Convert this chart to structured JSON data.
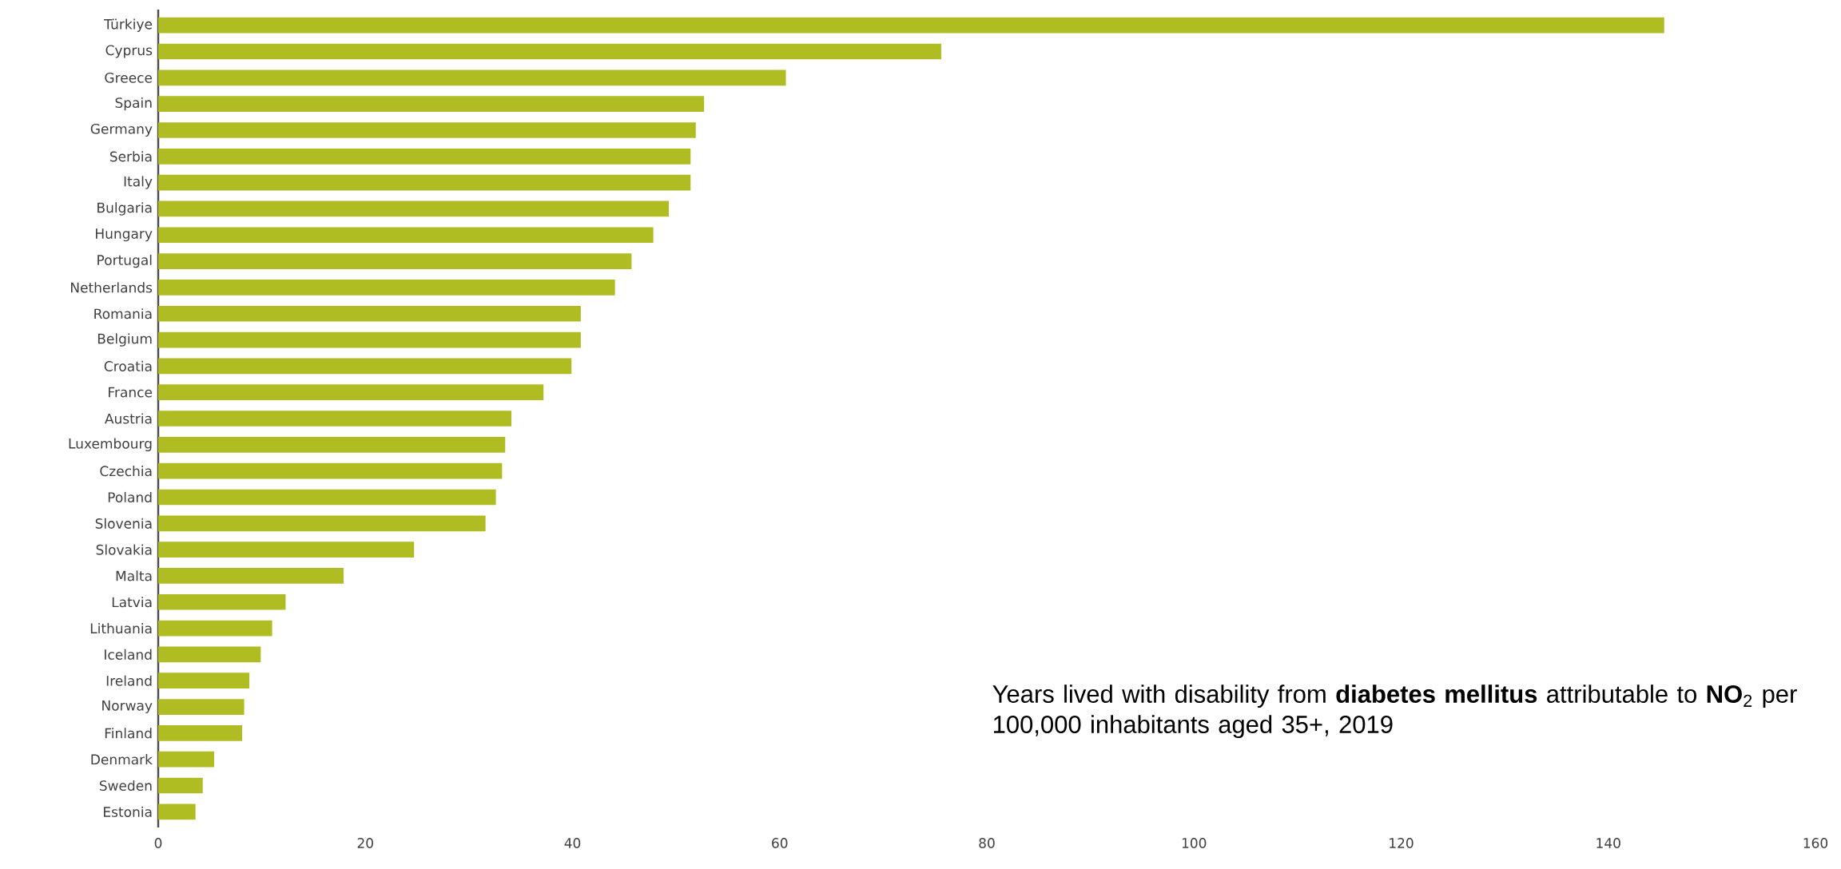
{
  "chart_data": {
    "type": "bar",
    "orientation": "horizontal",
    "categories": [
      "Türkiye",
      "Cyprus",
      "Greece",
      "Spain",
      "Germany",
      "Serbia",
      "Italy",
      "Bulgaria",
      "Hungary",
      "Portugal",
      "Netherlands",
      "Romania",
      "Belgium",
      "Croatia",
      "France",
      "Austria",
      "Luxembourg",
      "Czechia",
      "Poland",
      "Slovenia",
      "Slovakia",
      "Malta",
      "Latvia",
      "Lithuania",
      "Iceland",
      "Ireland",
      "Norway",
      "Finland",
      "Denmark",
      "Sweden",
      "Estonia"
    ],
    "values": [
      145.4,
      75.6,
      60.6,
      52.7,
      51.9,
      51.4,
      51.4,
      49.3,
      47.8,
      45.7,
      44.1,
      40.8,
      40.8,
      39.9,
      37.2,
      34.1,
      33.5,
      33.2,
      32.6,
      31.6,
      24.7,
      17.9,
      12.3,
      11.0,
      9.9,
      8.8,
      8.3,
      8.1,
      5.4,
      4.3,
      3.6
    ],
    "color": "#afbd22",
    "xlim": [
      0,
      160
    ],
    "xticks": [
      0,
      20,
      40,
      60,
      80,
      100,
      120,
      140,
      160
    ],
    "annotations": [
      "Years lived with disability from **diabetes mellitus** attributable to **NO**$_{2}$ per 100,000 inhabitants aged 35+, 2019"
    ]
  }
}
